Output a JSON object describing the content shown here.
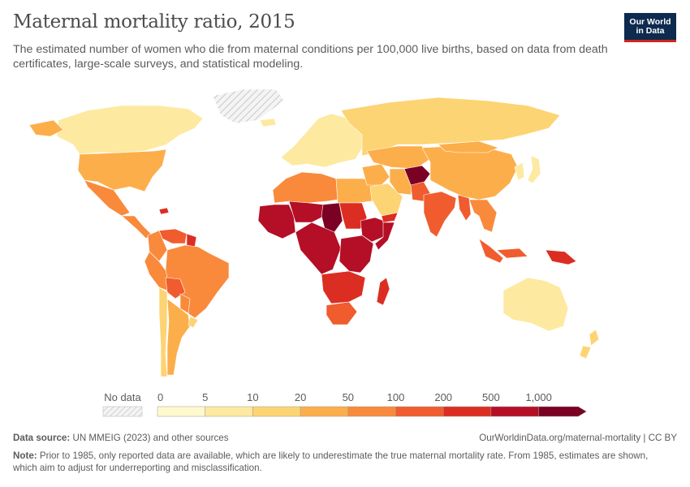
{
  "title": "Maternal mortality ratio, 2015",
  "subtitle": "The estimated number of women who die from maternal conditions per 100,000 live births, based on data from death certificates, large-scale surveys, and statistical modeling.",
  "logo": {
    "line1": "Our World",
    "line2": "in Data"
  },
  "legend": {
    "no_data_label": "No data",
    "ticks": [
      "0",
      "5",
      "10",
      "20",
      "50",
      "100",
      "200",
      "500",
      "1,000"
    ],
    "colors": [
      "#fffacd",
      "#fde9a0",
      "#fdd474",
      "#fcae4b",
      "#f98a3c",
      "#f05c2e",
      "#dc2d22",
      "#b40f26",
      "#7a0024"
    ]
  },
  "footer": {
    "source_label": "Data source:",
    "source_text": "UN MMEIG (2023) and other sources",
    "link": "OurWorldinData.org/maternal-mortality | CC BY",
    "note_label": "Note:",
    "note_text": "Prior to 1985, only reported data are available, which are likely to underestimate the true maternal mortality rate. From 1985, estimates are shown, which aim to adjust for underreporting and misclassification."
  },
  "map_data": {
    "metric": "Maternal mortality ratio",
    "year": 2015,
    "regions": [
      {
        "name": "Canada",
        "bin": 1
      },
      {
        "name": "United States",
        "bin": 3
      },
      {
        "name": "Mexico",
        "bin": 4
      },
      {
        "name": "Central America",
        "bin": 4
      },
      {
        "name": "Haiti",
        "bin": 6
      },
      {
        "name": "Venezuela",
        "bin": 5
      },
      {
        "name": "Guyana",
        "bin": 6
      },
      {
        "name": "Colombia",
        "bin": 4
      },
      {
        "name": "Peru",
        "bin": 4
      },
      {
        "name": "Brazil",
        "bin": 4
      },
      {
        "name": "Bolivia",
        "bin": 5
      },
      {
        "name": "Paraguay",
        "bin": 4
      },
      {
        "name": "Argentina",
        "bin": 3
      },
      {
        "name": "Chile",
        "bin": 2
      },
      {
        "name": "Uruguay",
        "bin": 2
      },
      {
        "name": "Greenland",
        "bin": -1
      },
      {
        "name": "Iceland",
        "bin": 1
      },
      {
        "name": "Europe",
        "bin": 1
      },
      {
        "name": "Russia",
        "bin": 2
      },
      {
        "name": "Maghreb",
        "bin": 4
      },
      {
        "name": "Libya & Egypt",
        "bin": 3
      },
      {
        "name": "West Africa",
        "bin": 7
      },
      {
        "name": "Sahel",
        "bin": 7
      },
      {
        "name": "Chad",
        "bin": 8
      },
      {
        "name": "Sudan",
        "bin": 6
      },
      {
        "name": "Ethiopia & Horn",
        "bin": 7
      },
      {
        "name": "Somalia",
        "bin": 7
      },
      {
        "name": "Central Africa",
        "bin": 7
      },
      {
        "name": "East Africa",
        "bin": 7
      },
      {
        "name": "Southern Africa",
        "bin": 6
      },
      {
        "name": "South Africa",
        "bin": 5
      },
      {
        "name": "Madagascar",
        "bin": 6
      },
      {
        "name": "Middle East",
        "bin": 3
      },
      {
        "name": "Saudi Arabia",
        "bin": 2
      },
      {
        "name": "Yemen",
        "bin": 6
      },
      {
        "name": "Iran",
        "bin": 3
      },
      {
        "name": "Central Asia",
        "bin": 3
      },
      {
        "name": "Afghanistan",
        "bin": 8
      },
      {
        "name": "Pakistan",
        "bin": 5
      },
      {
        "name": "India",
        "bin": 5
      },
      {
        "name": "Myanmar",
        "bin": 5
      },
      {
        "name": "China",
        "bin": 3
      },
      {
        "name": "Mongolia",
        "bin": 3
      },
      {
        "name": "Japan & Korea",
        "bin": 1
      },
      {
        "name": "Southeast Asia",
        "bin": 4
      },
      {
        "name": "Indonesia",
        "bin": 5
      },
      {
        "name": "Papua New Guinea",
        "bin": 6
      },
      {
        "name": "Australia",
        "bin": 1
      },
      {
        "name": "New Zealand",
        "bin": 2
      }
    ]
  }
}
